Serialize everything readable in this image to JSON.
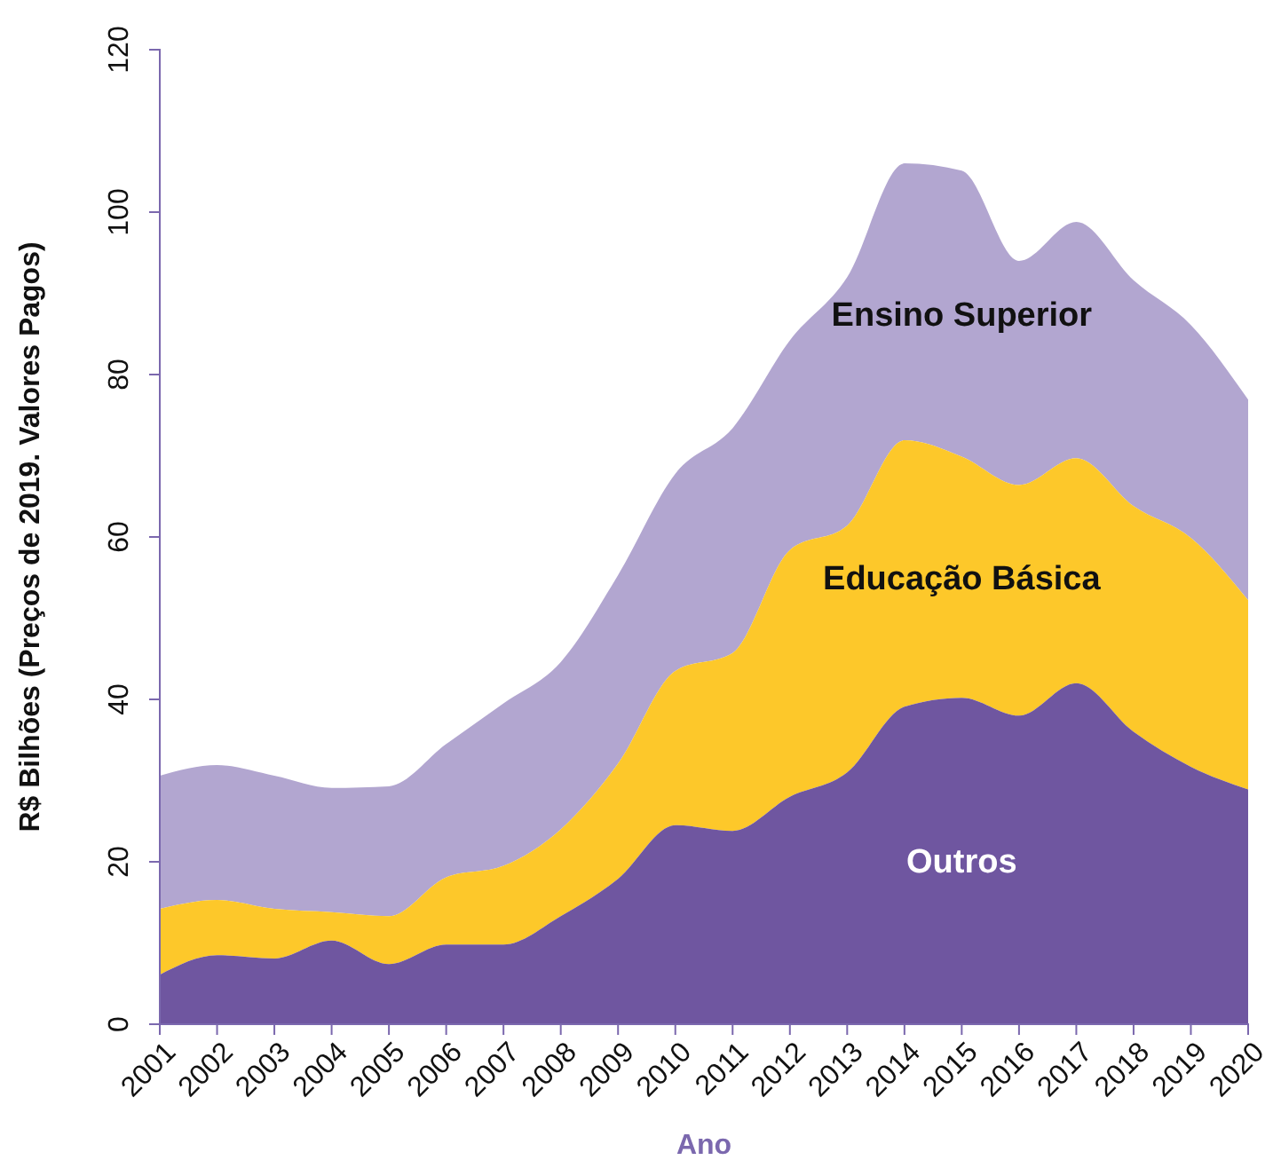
{
  "chart_data": {
    "type": "area",
    "stacked": true,
    "xlabel": "Ano",
    "ylabel": "R$ Bilhões (Preços de 2019. Valores Pagos)",
    "categories": [
      "2001",
      "2002",
      "2003",
      "2004",
      "2005",
      "2006",
      "2007",
      "2008",
      "2009",
      "2010",
      "2011",
      "2012",
      "2013",
      "2014",
      "2015",
      "2016",
      "2017",
      "2018",
      "2019",
      "2020"
    ],
    "ylim": [
      0,
      120
    ],
    "yticks": [
      0,
      20,
      40,
      60,
      80,
      100,
      120
    ],
    "grid": false,
    "series": [
      {
        "name": "Outros",
        "color": "#6f56a0",
        "values": [
          6.1,
          8.5,
          8.1,
          10.3,
          7.4,
          9.8,
          9.8,
          13.3,
          17.9,
          24.5,
          23.8,
          28.0,
          31.0,
          39.1,
          40.2,
          38.0,
          42.0,
          36.0,
          31.7,
          28.9
        ]
      },
      {
        "name": "Educação Básica",
        "color": "#fdc82a",
        "values": [
          8.1,
          6.8,
          6.1,
          3.5,
          5.9,
          8.3,
          9.7,
          10.7,
          14.2,
          19.0,
          21.9,
          30.4,
          30.4,
          32.8,
          29.7,
          28.4,
          27.7,
          27.8,
          28.2,
          23.3
        ]
      },
      {
        "name": "Ensino Superior",
        "color": "#b2a6d0",
        "values": [
          16.4,
          16.6,
          16.4,
          15.3,
          16.0,
          16.4,
          20.0,
          20.6,
          23.2,
          24.3,
          27.7,
          25.8,
          30.6,
          34.1,
          35.2,
          27.6,
          29.1,
          27.8,
          26.2,
          24.7
        ]
      }
    ]
  }
}
